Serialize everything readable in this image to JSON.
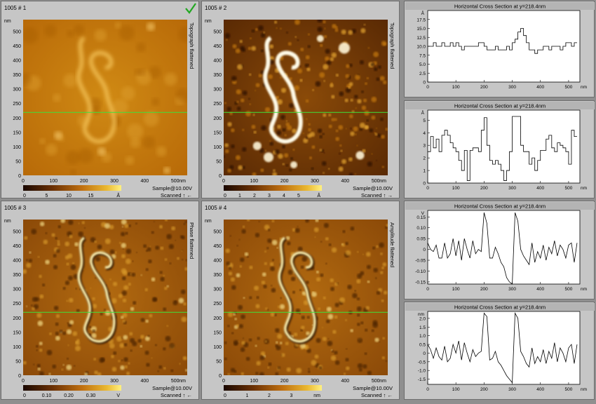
{
  "scans": [
    {
      "title": "1005 # 1",
      "side_label": "Topograph flattened",
      "x_unit": "nm",
      "y_unit": "nm",
      "x_ticks": [
        "0",
        "100",
        "200",
        "300",
        "400",
        "500"
      ],
      "y_ticks": [
        "500",
        "450",
        "400",
        "350",
        "300",
        "250",
        "200",
        "150",
        "100",
        "50",
        "0"
      ],
      "scale_ticks": [
        "0",
        "5",
        "10",
        "15"
      ],
      "scale_unit": "Å",
      "sample": "Sample@10.00V",
      "scanned": "Scanned ↑ ←",
      "colormap": "gold",
      "style": "topo_soft",
      "line_y_nm": 218.4,
      "checkmark": true
    },
    {
      "title": "1005 # 2",
      "side_label": "Topograph flattened",
      "x_unit": "nm",
      "y_unit": "nm",
      "x_ticks": [
        "0",
        "100",
        "200",
        "300",
        "400",
        "500"
      ],
      "y_ticks": [
        "500",
        "450",
        "400",
        "350",
        "300",
        "250",
        "200",
        "150",
        "100",
        "50",
        "0"
      ],
      "scale_ticks": [
        "0",
        "1",
        "2",
        "3",
        "4",
        "5"
      ],
      "scale_unit": "Å",
      "sample": "Sample@10.00V",
      "scanned": "Scanned ↑ →",
      "colormap": "gold",
      "style": "topo_hard",
      "line_y_nm": 218.4,
      "checkmark": false
    },
    {
      "title": "1005 # 3",
      "side_label": "Phase flattened",
      "x_unit": "nm",
      "y_unit": "nm",
      "x_ticks": [
        "0",
        "100",
        "200",
        "300",
        "400",
        "500"
      ],
      "y_ticks": [
        "500",
        "450",
        "400",
        "350",
        "300",
        "250",
        "200",
        "150",
        "100",
        "50",
        "0"
      ],
      "scale_ticks": [
        "0",
        "0.10",
        "0.20",
        "0.30"
      ],
      "scale_unit": "V",
      "sample": "Sample@10.00V",
      "scanned": "Scanned ↑ ←",
      "colormap": "gold",
      "style": "phase",
      "line_y_nm": 218.4,
      "checkmark": false
    },
    {
      "title": "1005 # 4",
      "side_label": "Amplitude flattened",
      "x_unit": "nm",
      "y_unit": "nm",
      "x_ticks": [
        "0",
        "100",
        "200",
        "300",
        "400",
        "500"
      ],
      "y_ticks": [
        "500",
        "450",
        "400",
        "350",
        "300",
        "250",
        "200",
        "150",
        "100",
        "50",
        "0"
      ],
      "scale_ticks": [
        "0",
        "1",
        "2",
        "3"
      ],
      "scale_unit": "nm",
      "sample": "Sample@10.00V",
      "scanned": "Scanned ↑ ←",
      "colormap": "gold",
      "style": "phase",
      "line_y_nm": 218.4,
      "checkmark": false
    }
  ],
  "chart_data": [
    {
      "type": "line",
      "title": "Horizontal Cross Section at y=218.4nm",
      "xlabel": "nm",
      "ylabel": "Å",
      "xlim": [
        0,
        540
      ],
      "ylim": [
        0,
        20
      ],
      "x_ticks": [
        0,
        100,
        200,
        300,
        400,
        500
      ],
      "y_ticks": [
        0,
        2.5,
        5,
        7.5,
        10,
        12.5,
        15,
        17.5
      ],
      "y_tick_labels": [
        "0",
        "2.5",
        "5.0",
        "7.5",
        "10.0",
        "12.5",
        "15.0",
        "17.5"
      ],
      "series": [
        {
          "x": [
            0,
            10,
            20,
            30,
            40,
            50,
            60,
            70,
            80,
            90,
            100,
            110,
            120,
            130,
            140,
            150,
            160,
            170,
            180,
            190,
            200,
            210,
            220,
            230,
            240,
            250,
            260,
            270,
            280,
            290,
            300,
            310,
            320,
            330,
            340,
            350,
            360,
            370,
            380,
            390,
            400,
            410,
            420,
            430,
            440,
            450,
            460,
            470,
            480,
            490,
            500,
            510,
            520,
            530
          ],
          "y": [
            10,
            10,
            11,
            10,
            10,
            11,
            10,
            10,
            11,
            10,
            11,
            10,
            9,
            10,
            10,
            10,
            10,
            10,
            11,
            11,
            10,
            9,
            9,
            9,
            10,
            9,
            9,
            9,
            10,
            9,
            11,
            12,
            14,
            15,
            13,
            11,
            9,
            9,
            8,
            9,
            9,
            10,
            10,
            9,
            10,
            10,
            10,
            9,
            10,
            11,
            11,
            10,
            11,
            11
          ]
        }
      ]
    },
    {
      "type": "line",
      "title": "Horizontal Cross Section at y=218.4nm",
      "xlabel": "nm",
      "ylabel": "Å",
      "xlim": [
        0,
        540
      ],
      "ylim": [
        0,
        5.8
      ],
      "x_ticks": [
        0,
        100,
        200,
        300,
        400,
        500
      ],
      "y_ticks": [
        0,
        1,
        2,
        3,
        4,
        5
      ],
      "y_tick_labels": [
        "0",
        "1",
        "2",
        "3",
        "4",
        "5"
      ],
      "series": [
        {
          "x": [
            0,
            10,
            20,
            30,
            40,
            50,
            60,
            70,
            80,
            90,
            100,
            110,
            120,
            130,
            140,
            150,
            160,
            170,
            180,
            190,
            200,
            210,
            220,
            230,
            240,
            250,
            260,
            270,
            280,
            290,
            300,
            310,
            320,
            330,
            340,
            350,
            360,
            370,
            380,
            390,
            400,
            410,
            420,
            430,
            440,
            450,
            460,
            470,
            480,
            490,
            500,
            510,
            520,
            530
          ],
          "y": [
            2.5,
            3.7,
            2.8,
            3.5,
            2.5,
            3.8,
            4.2,
            3.8,
            3.2,
            2.8,
            2.5,
            1.8,
            1.0,
            2.6,
            0.2,
            2.6,
            2.8,
            2.8,
            2.5,
            4.2,
            5.2,
            3.0,
            1.8,
            1.5,
            1.8,
            1.5,
            1.0,
            0.2,
            1.0,
            2.5,
            5.3,
            5.3,
            5.3,
            3.0,
            2.5,
            2.5,
            1.5,
            2.0,
            1.0,
            1.8,
            2.6,
            2.6,
            3.5,
            3.8,
            2.8,
            2.5,
            3.2,
            3.0,
            2.8,
            2.5,
            1.5,
            4.2,
            3.7,
            3.7
          ]
        }
      ]
    },
    {
      "type": "line",
      "title": "Horizontal Cross Section at y=218.4nm",
      "xlabel": "nm",
      "ylabel": "V",
      "xlim": [
        0,
        540
      ],
      "ylim": [
        -0.16,
        0.18
      ],
      "x_ticks": [
        0,
        100,
        200,
        300,
        400,
        500
      ],
      "y_ticks": [
        -0.15,
        -0.1,
        -0.05,
        0,
        0.05,
        0.1,
        0.15
      ],
      "y_tick_labels": [
        "-0.15",
        "-0.10",
        "-0.05",
        "0",
        "0.05",
        "0.10",
        "0.15"
      ],
      "series": [
        {
          "x": [
            0,
            10,
            20,
            30,
            40,
            50,
            60,
            70,
            80,
            90,
            100,
            110,
            120,
            130,
            140,
            150,
            160,
            170,
            180,
            190,
            200,
            210,
            220,
            230,
            240,
            250,
            260,
            270,
            280,
            290,
            300,
            310,
            320,
            330,
            340,
            350,
            360,
            370,
            380,
            390,
            400,
            410,
            420,
            430,
            440,
            450,
            460,
            470,
            480,
            490,
            500,
            510,
            520,
            530
          ],
          "y": [
            0.03,
            0.0,
            -0.01,
            0.02,
            -0.04,
            -0.04,
            0.03,
            -0.04,
            -0.02,
            0.05,
            -0.03,
            0.04,
            -0.05,
            0.05,
            0.0,
            -0.04,
            0.04,
            -0.02,
            0.0,
            -0.01,
            0.17,
            0.12,
            -0.04,
            -0.04,
            0.01,
            -0.02,
            -0.06,
            -0.08,
            -0.13,
            -0.15,
            -0.16,
            0.17,
            0.13,
            0.0,
            -0.03,
            -0.05,
            -0.07,
            0.03,
            -0.06,
            -0.01,
            -0.04,
            0.02,
            -0.05,
            0.01,
            -0.02,
            0.04,
            -0.03,
            0.02,
            0.0,
            -0.04,
            0.02,
            0.03,
            -0.06,
            0.03
          ]
        }
      ]
    },
    {
      "type": "line",
      "title": "Horizontal Cross Section at y=218.4nm",
      "xlabel": "nm",
      "ylabel": "nm",
      "xlim": [
        0,
        540
      ],
      "ylim": [
        -1.8,
        2.4
      ],
      "x_ticks": [
        0,
        100,
        200,
        300,
        400,
        500
      ],
      "y_ticks": [
        -1.5,
        -1.0,
        -0.5,
        0,
        0.5,
        1.0,
        1.5,
        2.0
      ],
      "y_tick_labels": [
        "-1.5",
        "-1.0",
        "-0.5",
        "0",
        "0.5",
        "1.0",
        "1.5",
        "2.0"
      ],
      "series": [
        {
          "x": [
            0,
            10,
            20,
            30,
            40,
            50,
            60,
            70,
            80,
            90,
            100,
            110,
            120,
            130,
            140,
            150,
            160,
            170,
            180,
            190,
            200,
            210,
            220,
            230,
            240,
            250,
            260,
            270,
            280,
            290,
            300,
            310,
            320,
            330,
            340,
            350,
            360,
            370,
            380,
            390,
            400,
            410,
            420,
            430,
            440,
            450,
            460,
            470,
            480,
            490,
            500,
            510,
            520,
            530
          ],
          "y": [
            0.5,
            0.2,
            -0.3,
            0.3,
            -0.2,
            -0.4,
            0.4,
            -0.5,
            -0.3,
            0.5,
            0.0,
            0.7,
            -0.4,
            0.6,
            0.0,
            -0.5,
            0.2,
            -0.2,
            0.0,
            0.1,
            2.3,
            2.1,
            -0.4,
            -0.3,
            0.1,
            -0.5,
            -0.7,
            -1.0,
            -1.3,
            -1.5,
            -1.7,
            2.3,
            2.0,
            0.1,
            -0.2,
            -0.6,
            -0.8,
            0.3,
            -0.6,
            -0.2,
            -0.5,
            0.2,
            -0.6,
            0.1,
            -0.3,
            0.6,
            -0.5,
            0.3,
            0.0,
            -0.5,
            0.3,
            0.5,
            -0.6,
            0.5
          ]
        }
      ]
    }
  ]
}
